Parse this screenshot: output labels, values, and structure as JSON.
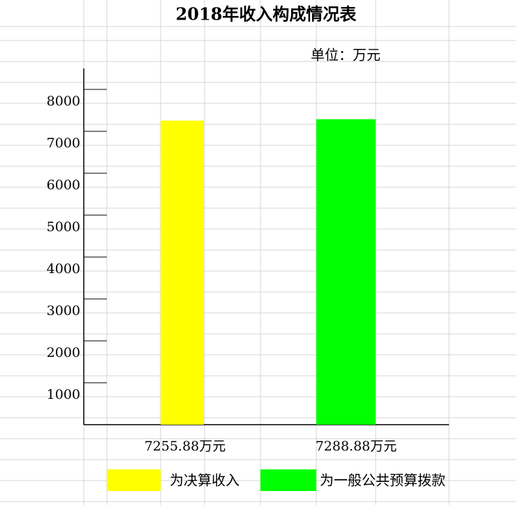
{
  "chart_data": {
    "type": "bar",
    "title": "2018年收入构成情况表",
    "subtitle": "单位：万元",
    "series": [
      {
        "name": "为决算收入",
        "color": "#ffff00",
        "values": [
          7255.88
        ],
        "value_labels": [
          "7255.88万元"
        ]
      },
      {
        "name": "为一般公共预算拨款",
        "color": "#00ff00",
        "values": [
          7288.88
        ],
        "value_labels": [
          "7288.88万元"
        ]
      }
    ],
    "ylim": [
      0,
      8500
    ],
    "yticks": [
      1000,
      2000,
      3000,
      4000,
      5000,
      6000,
      7000,
      8000
    ]
  }
}
